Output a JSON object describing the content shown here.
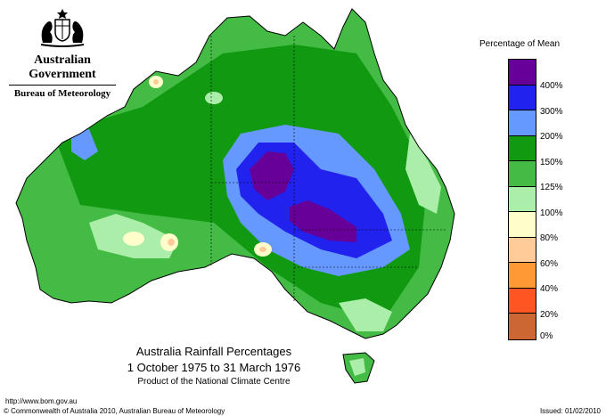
{
  "header": {
    "government": "Australian Government",
    "bureau": "Bureau of Meteorology"
  },
  "map": {
    "title_line1": "Australia Rainfall Percentages",
    "title_line2": "1 October 1975 to 31 March 1976",
    "title_line3": "Product of the National Climate Centre"
  },
  "legend": {
    "title": "Percentage of Mean",
    "bands": [
      {
        "color": "#660099"
      },
      {
        "color": "#2222ee"
      },
      {
        "color": "#6699ff"
      },
      {
        "color": "#119911"
      },
      {
        "color": "#44bb44"
      },
      {
        "color": "#aaeeaa"
      },
      {
        "color": "#ffffcc"
      },
      {
        "color": "#ffcc99"
      },
      {
        "color": "#ff9933"
      },
      {
        "color": "#ff5522"
      },
      {
        "color": "#cc6633"
      }
    ],
    "labels": [
      "400%",
      "300%",
      "200%",
      "150%",
      "125%",
      "100%",
      "80%",
      "60%",
      "40%",
      "20%",
      "0%"
    ]
  },
  "footer": {
    "url": "http://www.bom.gov.au",
    "copyright": "© Commonwealth of Australia 2010, Australian Bureau of Meteorology",
    "issued": "Issued: 01/02/2010"
  }
}
